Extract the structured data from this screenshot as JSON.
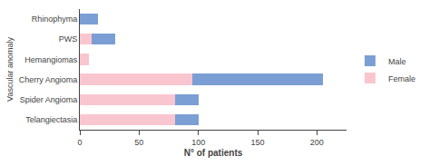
{
  "chart_data": {
    "type": "bar",
    "orientation": "horizontal",
    "stacked": true,
    "categories": [
      "Telangiectasia",
      "Spider Angioma",
      "Cherry Angioma",
      "Hemangiomas",
      "PWS",
      "Rhinophyma"
    ],
    "series": [
      {
        "name": "Female",
        "color": "#f9c6d0",
        "values": [
          80,
          80,
          95,
          8,
          10,
          0
        ]
      },
      {
        "name": "Male",
        "color": "#7b9fd4",
        "values": [
          20,
          20,
          110,
          0,
          20,
          15
        ]
      }
    ],
    "xlabel": "N° of patients",
    "ylabel": "Vascular anomaly",
    "xlim": [
      0,
      225
    ],
    "xticks": [
      0,
      50,
      100,
      150,
      200
    ],
    "grid": false,
    "legend": "right"
  }
}
